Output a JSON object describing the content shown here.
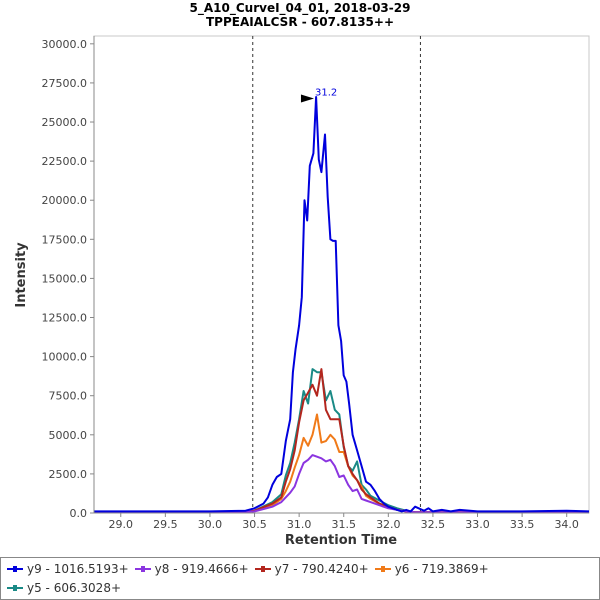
{
  "chart_data": {
    "type": "line",
    "title": "5_A10_CurveI_04_01, 2018-03-29",
    "subtitle": "TPPEAIALCSR - 607.8135++",
    "xlabel": "Retention Time",
    "ylabel": "Intensity",
    "xlim": [
      28.7,
      34.25
    ],
    "ylim": [
      0,
      30500
    ],
    "xticks": [
      29.0,
      29.5,
      30.0,
      30.5,
      31.0,
      31.5,
      32.0,
      32.5,
      33.0,
      33.5,
      34.0
    ],
    "xtick_labels": [
      "29.0",
      "29.5",
      "30.0",
      "30.5",
      "31.0",
      "31.5",
      "32.0",
      "32.5",
      "33.0",
      "33.5",
      "34.0"
    ],
    "yticks": [
      0,
      2500,
      5000,
      7500,
      10000,
      12500,
      15000,
      17500,
      20000,
      22500,
      25000,
      27500,
      30000
    ],
    "ytick_labels": [
      "0.0",
      "2500.0",
      "5000.0",
      "7500.0",
      "10000.0",
      "12500.0",
      "15000.0",
      "17500.0",
      "20000.0",
      "22500.0",
      "25000.0",
      "27500.0",
      "30000.0"
    ],
    "integration_bounds": [
      30.48,
      32.36
    ],
    "peak_annotation": {
      "label": "31.2",
      "x": 31.2,
      "y": 26500
    },
    "series": [
      {
        "name": "y9 - 1016.5193+",
        "color": "#0000dd",
        "x": [
          28.7,
          29.5,
          30.0,
          30.4,
          30.5,
          30.6,
          30.65,
          30.7,
          30.75,
          30.8,
          30.85,
          30.9,
          30.93,
          30.96,
          31.0,
          31.03,
          31.06,
          31.09,
          31.12,
          31.16,
          31.19,
          31.22,
          31.25,
          31.29,
          31.32,
          31.35,
          31.38,
          31.41,
          31.44,
          31.47,
          31.5,
          31.53,
          31.56,
          31.6,
          31.65,
          31.7,
          31.75,
          31.8,
          31.85,
          31.9,
          31.95,
          32.0,
          32.05,
          32.1,
          32.15,
          32.2,
          32.25,
          32.3,
          32.4,
          32.45,
          32.5,
          32.6,
          32.7,
          32.8,
          33.0,
          33.5,
          34.0,
          34.25
        ],
        "y": [
          100,
          100,
          100,
          150,
          300,
          600,
          1000,
          1800,
          2300,
          2500,
          4600,
          6000,
          9000,
          10500,
          12000,
          13800,
          20000,
          18700,
          22200,
          23000,
          26600,
          22600,
          21800,
          24200,
          20200,
          17500,
          17400,
          17400,
          12000,
          11000,
          8800,
          8400,
          7000,
          5000,
          4000,
          3000,
          2000,
          1800,
          1400,
          900,
          600,
          400,
          300,
          200,
          100,
          200,
          100,
          400,
          150,
          300,
          100,
          200,
          100,
          200,
          100,
          100,
          150,
          100
        ]
      },
      {
        "name": "y8 - 919.4666+",
        "color": "#8b35e0",
        "x": [
          28.7,
          30.0,
          30.5,
          30.7,
          30.8,
          30.9,
          30.95,
          31.0,
          31.05,
          31.1,
          31.15,
          31.2,
          31.25,
          31.3,
          31.35,
          31.4,
          31.45,
          31.5,
          31.55,
          31.6,
          31.65,
          31.7,
          31.75,
          31.8,
          31.9,
          32.0,
          32.1,
          32.2,
          32.3,
          33.0,
          34.25
        ],
        "y": [
          50,
          50,
          100,
          400,
          700,
          1300,
          1700,
          2500,
          3200,
          3400,
          3700,
          3600,
          3500,
          3300,
          3400,
          3000,
          2300,
          2400,
          1800,
          1400,
          1500,
          900,
          800,
          700,
          500,
          300,
          200,
          100,
          50,
          50,
          50
        ]
      },
      {
        "name": "y7 - 790.4240+",
        "color": "#b3261e",
        "x": [
          28.7,
          30.0,
          30.5,
          30.7,
          30.8,
          30.85,
          30.9,
          30.95,
          31.0,
          31.05,
          31.1,
          31.15,
          31.2,
          31.25,
          31.3,
          31.35,
          31.4,
          31.45,
          31.5,
          31.55,
          31.6,
          31.65,
          31.7,
          31.75,
          31.8,
          31.85,
          31.9,
          32.0,
          32.1,
          32.2,
          32.3,
          33.0,
          34.25
        ],
        "y": [
          50,
          50,
          150,
          600,
          1000,
          2000,
          2800,
          4000,
          5800,
          7200,
          7700,
          8200,
          7500,
          9200,
          6600,
          6000,
          6000,
          6000,
          4300,
          3000,
          2500,
          2100,
          1500,
          1200,
          1000,
          800,
          600,
          400,
          200,
          100,
          50,
          50,
          50
        ]
      },
      {
        "name": "y6 - 719.3869+",
        "color": "#f07a19",
        "x": [
          28.7,
          30.0,
          30.5,
          30.7,
          30.8,
          30.85,
          30.9,
          30.95,
          31.0,
          31.05,
          31.1,
          31.15,
          31.2,
          31.25,
          31.3,
          31.35,
          31.4,
          31.45,
          31.5,
          31.55,
          31.6,
          31.65,
          31.7,
          31.75,
          31.8,
          31.9,
          32.0,
          32.1,
          32.2,
          32.3,
          33.0,
          34.25
        ],
        "y": [
          50,
          50,
          120,
          500,
          900,
          1400,
          2000,
          2900,
          3700,
          4800,
          4300,
          5000,
          6300,
          4500,
          4600,
          5000,
          4700,
          3900,
          3900,
          3000,
          2400,
          2100,
          1700,
          1100,
          900,
          600,
          400,
          200,
          100,
          50,
          50,
          50
        ]
      },
      {
        "name": "y5 - 606.3028+",
        "color": "#1a8a86",
        "x": [
          28.7,
          30.0,
          30.5,
          30.7,
          30.8,
          30.85,
          30.9,
          30.95,
          31.0,
          31.05,
          31.1,
          31.15,
          31.2,
          31.25,
          31.3,
          31.35,
          31.4,
          31.45,
          31.5,
          31.55,
          31.6,
          31.65,
          31.7,
          31.75,
          31.8,
          31.9,
          32.0,
          32.1,
          32.2,
          32.3,
          33.0,
          34.25
        ],
        "y": [
          50,
          50,
          150,
          700,
          1200,
          2400,
          3200,
          4500,
          6000,
          7800,
          7000,
          9200,
          9000,
          9000,
          7200,
          7800,
          6600,
          6300,
          4200,
          3000,
          2700,
          3300,
          1800,
          1500,
          1100,
          800,
          500,
          300,
          150,
          50,
          50,
          50
        ]
      }
    ]
  }
}
